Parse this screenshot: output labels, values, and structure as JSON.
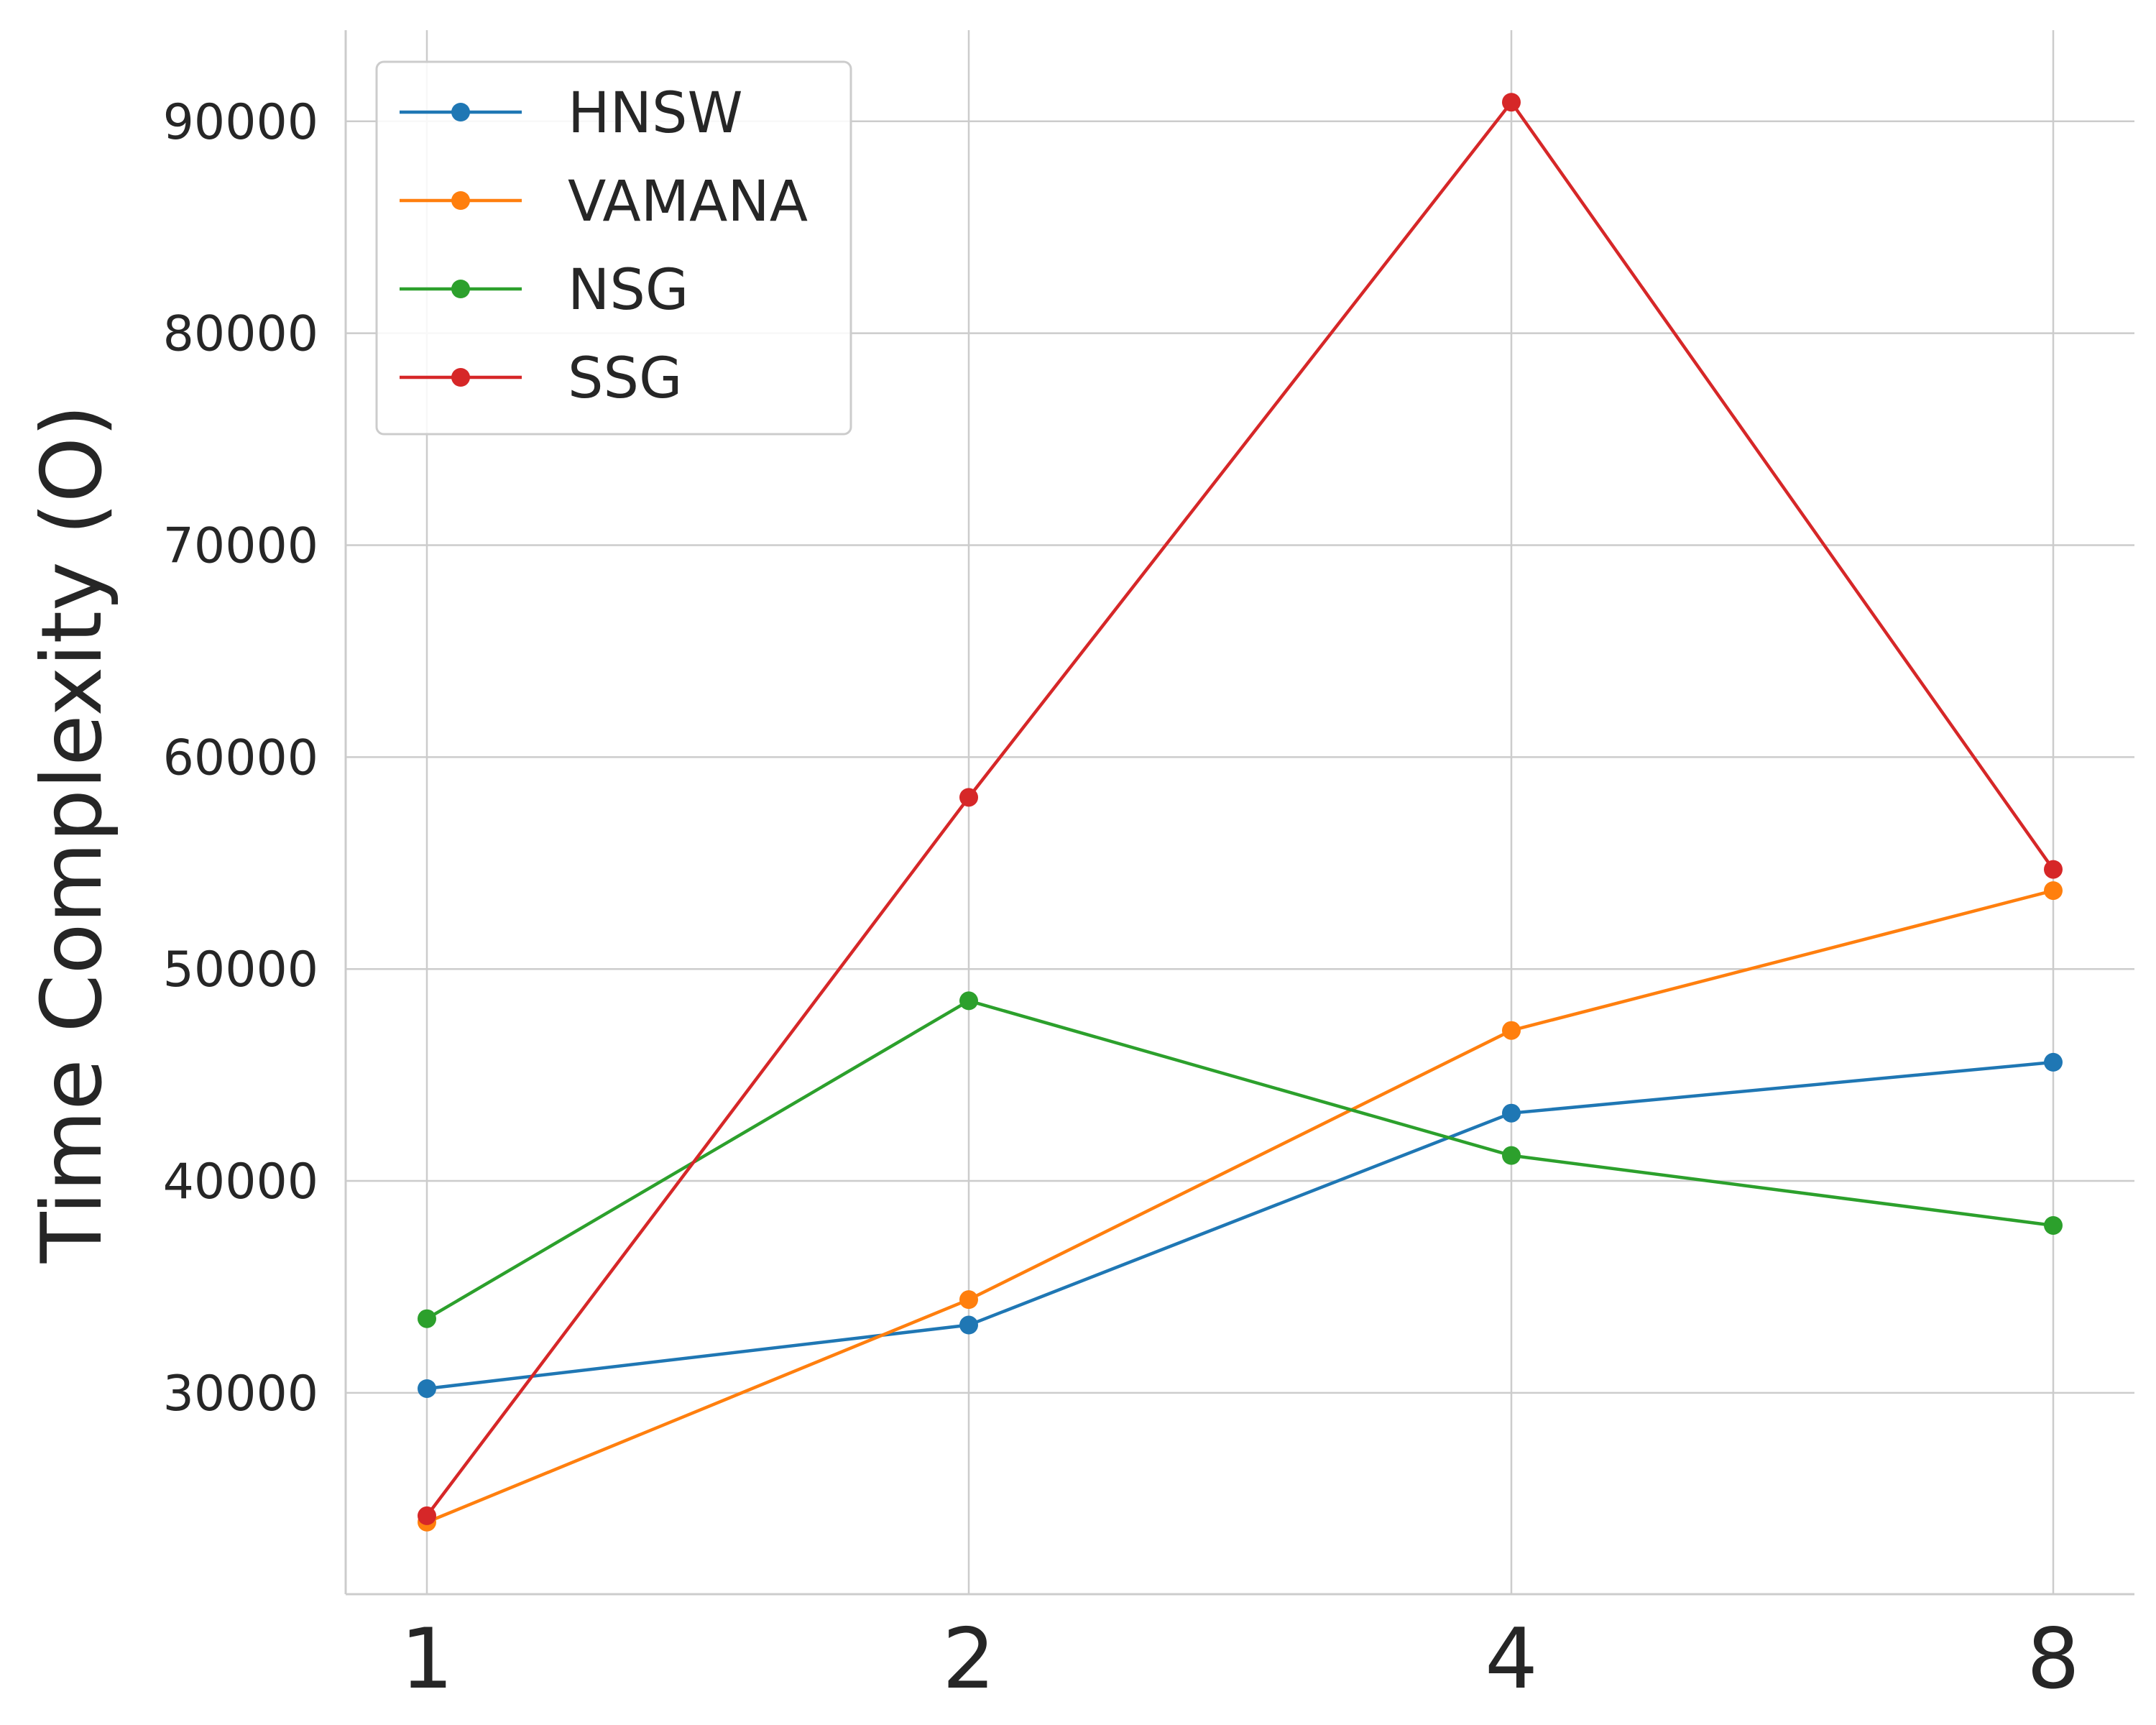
{
  "chart_data": {
    "type": "line",
    "x": [
      1,
      2,
      4,
      8
    ],
    "x_tick_labels": [
      "1",
      "2",
      "4",
      "8"
    ],
    "xlabel": "",
    "ylabel": "Time Complexity (O)",
    "ylim": [
      20500,
      94300
    ],
    "y_ticks": [
      30000,
      40000,
      50000,
      60000,
      70000,
      80000,
      90000
    ],
    "y_tick_labels": [
      "30000",
      "40000",
      "50000",
      "60000",
      "70000",
      "80000",
      "90000"
    ],
    "grid": true,
    "legend_position": "top-left",
    "series": [
      {
        "name": "HNSW",
        "color": "#1f77b4",
        "values": [
          30200,
          33200,
          43200,
          45600
        ]
      },
      {
        "name": "VAMANA",
        "color": "#ff7f0e",
        "values": [
          23900,
          34400,
          47100,
          53700
        ]
      },
      {
        "name": "NSG",
        "color": "#2ca02c",
        "values": [
          33500,
          48500,
          41200,
          37900
        ]
      },
      {
        "name": "SSG",
        "color": "#d62728",
        "values": [
          24200,
          58100,
          90900,
          54700
        ]
      }
    ]
  }
}
